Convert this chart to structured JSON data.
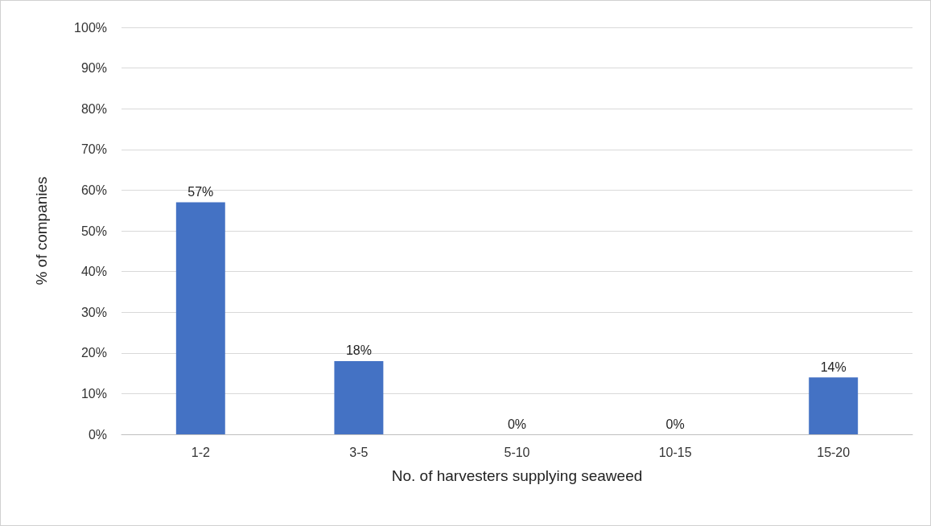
{
  "chart_data": {
    "type": "bar",
    "xlabel": "No. of harvesters supplying seaweed",
    "ylabel": "% of companies",
    "categories": [
      "1-2",
      "3-5",
      "5-10",
      "10-15",
      "15-20"
    ],
    "values": [
      57,
      18,
      0,
      0,
      14
    ],
    "value_labels": [
      "57%",
      "18%",
      "0%",
      "0%",
      "14%"
    ],
    "color": "#4472c4",
    "ylim": [
      0,
      100
    ],
    "yticks": [
      {
        "value": 0,
        "label": "0%"
      },
      {
        "value": 10,
        "label": "10%"
      },
      {
        "value": 20,
        "label": "20%"
      },
      {
        "value": 30,
        "label": "30%"
      },
      {
        "value": 40,
        "label": "40%"
      },
      {
        "value": 50,
        "label": "50%"
      },
      {
        "value": 60,
        "label": "60%"
      },
      {
        "value": 70,
        "label": "70%"
      },
      {
        "value": 80,
        "label": "80%"
      },
      {
        "value": 90,
        "label": "90%"
      },
      {
        "value": 100,
        "label": "100%"
      }
    ],
    "grid": "y"
  }
}
